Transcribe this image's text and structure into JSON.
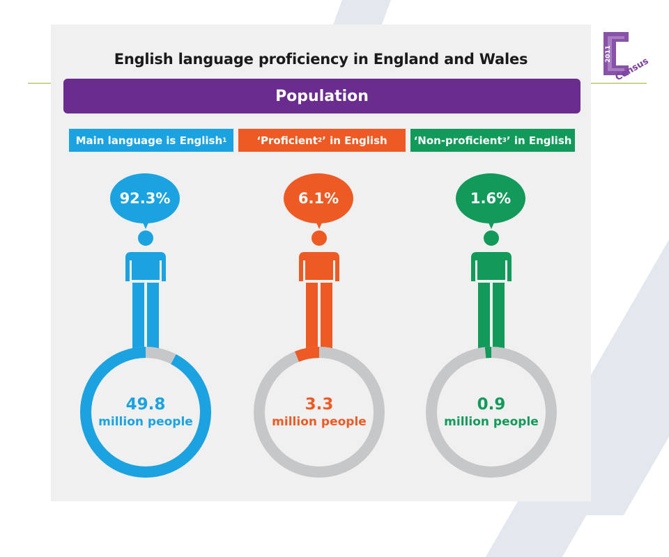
{
  "title": "English language proficiency in England and Wales",
  "population_label": "Population",
  "logo": {
    "year": "2011",
    "word": "Census",
    "color": "#7b3fa0"
  },
  "colors": {
    "purple": "#6a2d8f",
    "ring_track": "#c6c7c9",
    "panel": "#f0f0f0"
  },
  "categories": [
    {
      "label_text": "Main language is English",
      "label_sup": "1",
      "percent_text": "92.3%",
      "value_text": "49.8",
      "unit_text": "million people",
      "color": "#1aa3e0"
    },
    {
      "label_text": "‘Proficient",
      "label_sup": "2",
      "label_suffix": "’ in English",
      "percent_text": "6.1%",
      "value_text": "3.3",
      "unit_text": "million people",
      "color": "#ee5a24"
    },
    {
      "label_text": "‘Non-proficient",
      "label_sup": "3",
      "label_suffix": "’ in English",
      "percent_text": "1.6%",
      "value_text": "0.9",
      "unit_text": "million people",
      "color": "#129a5a"
    }
  ],
  "chart_data": {
    "type": "pie",
    "title": "English language proficiency in England and Wales",
    "subtitle": "Population",
    "categories": [
      "Main language is English",
      "'Proficient' in English",
      "'Non-proficient' in English"
    ],
    "values": [
      92.3,
      6.1,
      1.6
    ],
    "unit": "%",
    "counts_million": [
      49.8,
      3.3,
      0.9
    ]
  }
}
